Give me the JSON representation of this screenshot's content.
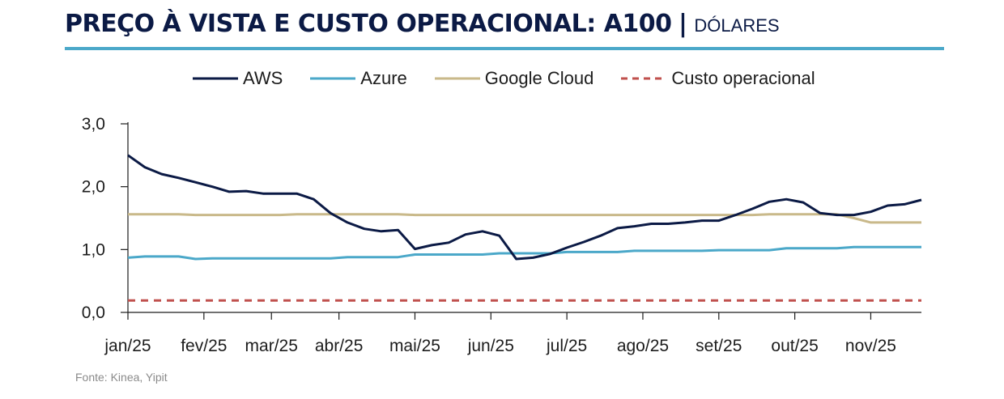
{
  "header": {
    "title": "PREÇO À VISTA E CUSTO OPERACIONAL: A100",
    "separator": "|",
    "subtitle": "DÓLARES"
  },
  "source": "Fonte: Kinea, Yipit",
  "colors": {
    "aws": "#0b1a45",
    "azure": "#4ba8c9",
    "google": "#c9b98a",
    "custo": "#c0504d",
    "accent_rule": "#4ba8c9"
  },
  "chart_data": {
    "type": "line",
    "title": "PREÇO À VISTA E CUSTO OPERACIONAL: A100",
    "xlabel": "",
    "ylabel": "",
    "ylim": [
      0,
      3
    ],
    "y_ticks": [
      "0,0",
      "1,0",
      "2,0",
      "3,0"
    ],
    "y_tick_values": [
      0,
      1,
      2,
      3
    ],
    "x_tick_labels": [
      "jan/25",
      "fev/25",
      "mar/25",
      "abr/25",
      "mai/25",
      "jun/25",
      "jul/25",
      "ago/25",
      "set/25",
      "out/25",
      "nov/25"
    ],
    "x_tick_weeks": [
      0,
      4.5,
      8.5,
      12.5,
      17,
      21.5,
      26,
      30.5,
      35,
      39.5,
      44
    ],
    "x_range_weeks": [
      0,
      47
    ],
    "legend": [
      "AWS",
      "Azure",
      "Google Cloud",
      "Custo operacional"
    ],
    "series": [
      {
        "name": "AWS",
        "style": "solid",
        "x": [
          0,
          1,
          2,
          3,
          4,
          5,
          6,
          7,
          8,
          9,
          10,
          11,
          12,
          13,
          14,
          15,
          16,
          17,
          18,
          19,
          20,
          21,
          22,
          23,
          24,
          25,
          26,
          27,
          28,
          29,
          30,
          31,
          32,
          33,
          34,
          35,
          36,
          37,
          38,
          39,
          40,
          41,
          42,
          43,
          44,
          45,
          46,
          47
        ],
        "values": [
          2.5,
          2.31,
          2.2,
          2.14,
          2.07,
          2.0,
          1.92,
          1.93,
          1.89,
          1.89,
          1.89,
          1.8,
          1.58,
          1.43,
          1.33,
          1.29,
          1.31,
          1.01,
          1.07,
          1.11,
          1.24,
          1.29,
          1.22,
          0.85,
          0.87,
          0.93,
          1.03,
          1.12,
          1.22,
          1.34,
          1.37,
          1.41,
          1.41,
          1.43,
          1.46,
          1.46,
          1.55,
          1.65,
          1.76,
          1.8,
          1.75,
          1.58,
          1.55,
          1.55,
          1.6,
          1.7,
          1.72,
          1.79
        ]
      },
      {
        "name": "Azure",
        "style": "solid",
        "x": [
          0,
          1,
          2,
          3,
          4,
          5,
          6,
          7,
          8,
          9,
          10,
          11,
          12,
          13,
          14,
          15,
          16,
          17,
          18,
          19,
          20,
          21,
          22,
          23,
          24,
          25,
          26,
          27,
          28,
          29,
          30,
          31,
          32,
          33,
          34,
          35,
          36,
          37,
          38,
          39,
          40,
          41,
          42,
          43,
          44,
          45,
          46,
          47
        ],
        "values": [
          0.87,
          0.89,
          0.89,
          0.89,
          0.85,
          0.86,
          0.86,
          0.86,
          0.86,
          0.86,
          0.86,
          0.86,
          0.86,
          0.88,
          0.88,
          0.88,
          0.88,
          0.92,
          0.92,
          0.92,
          0.92,
          0.92,
          0.94,
          0.94,
          0.94,
          0.94,
          0.96,
          0.96,
          0.96,
          0.96,
          0.98,
          0.98,
          0.98,
          0.98,
          0.98,
          0.99,
          0.99,
          0.99,
          0.99,
          1.02,
          1.02,
          1.02,
          1.02,
          1.04,
          1.04,
          1.04,
          1.04,
          1.04
        ]
      },
      {
        "name": "Google Cloud",
        "style": "solid",
        "x": [
          0,
          1,
          2,
          3,
          4,
          5,
          6,
          7,
          8,
          9,
          10,
          11,
          12,
          13,
          14,
          15,
          16,
          17,
          18,
          19,
          20,
          21,
          22,
          23,
          24,
          25,
          26,
          27,
          28,
          29,
          30,
          31,
          32,
          33,
          34,
          35,
          36,
          37,
          38,
          39,
          40,
          41,
          42,
          43,
          44,
          45,
          46,
          47
        ],
        "values": [
          1.56,
          1.56,
          1.56,
          1.56,
          1.55,
          1.55,
          1.55,
          1.55,
          1.55,
          1.55,
          1.56,
          1.56,
          1.56,
          1.56,
          1.56,
          1.56,
          1.56,
          1.55,
          1.55,
          1.55,
          1.55,
          1.55,
          1.55,
          1.55,
          1.55,
          1.55,
          1.55,
          1.55,
          1.55,
          1.55,
          1.55,
          1.55,
          1.55,
          1.55,
          1.55,
          1.55,
          1.55,
          1.55,
          1.56,
          1.56,
          1.56,
          1.56,
          1.56,
          1.5,
          1.43,
          1.43,
          1.43,
          1.43
        ]
      },
      {
        "name": "Custo operacional",
        "style": "dashed",
        "x": [
          0,
          47
        ],
        "values": [
          0.19,
          0.19
        ]
      }
    ]
  }
}
